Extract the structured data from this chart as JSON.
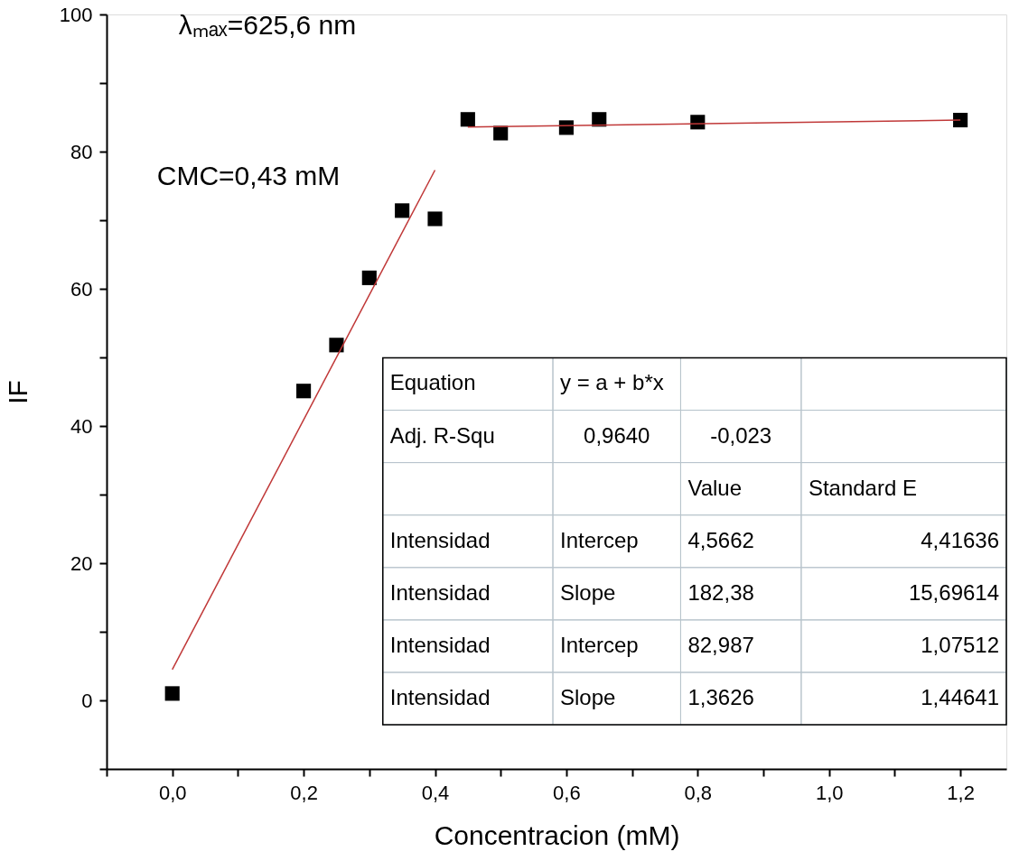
{
  "chart_data": {
    "type": "scatter",
    "xlabel": "Concentracion (mM)",
    "ylabel": "IF",
    "xlim": [
      -0.1,
      1.27
    ],
    "ylim": [
      -10,
      100
    ],
    "xticks": [
      {
        "value": -0.1,
        "label": null
      },
      {
        "value": 0,
        "label": "0,0"
      },
      {
        "value": 0.1,
        "label": null
      },
      {
        "value": 0.2,
        "label": "0,2"
      },
      {
        "value": 0.3,
        "label": null
      },
      {
        "value": 0.4,
        "label": "0,4"
      },
      {
        "value": 0.5,
        "label": null
      },
      {
        "value": 0.6,
        "label": "0,6"
      },
      {
        "value": 0.7,
        "label": null
      },
      {
        "value": 0.8,
        "label": "0,8"
      },
      {
        "value": 0.9,
        "label": null
      },
      {
        "value": 1.0,
        "label": "1,0"
      },
      {
        "value": 1.1,
        "label": null
      },
      {
        "value": 1.2,
        "label": "1,2"
      }
    ],
    "yticks": [
      {
        "value": -10,
        "label": null
      },
      0,
      {
        "value": 10,
        "label": null
      },
      20,
      {
        "value": 30,
        "label": null
      },
      40,
      {
        "value": 50,
        "label": null
      },
      60,
      {
        "value": 70,
        "label": null
      },
      80,
      {
        "value": 90,
        "label": null
      },
      100
    ],
    "grid": false,
    "series": [
      {
        "color": "#000000",
        "marker": "square",
        "x": [
          0.0,
          0.2,
          0.25,
          0.3,
          0.35,
          0.4,
          0.45,
          0.5,
          0.6,
          0.65,
          0.8,
          1.2
        ],
        "values": [
          1.0,
          45.1,
          51.8,
          61.6,
          71.4,
          70.2,
          84.7,
          82.7,
          83.5,
          84.7,
          84.3,
          84.6
        ]
      },
      {
        "type": "line",
        "color": "#c03838",
        "line_style": "solid",
        "x": [
          0.0,
          0.4
        ],
        "values": [
          4.5,
          77.3
        ]
      },
      {
        "type": "line",
        "color": "#c03838",
        "line_style": "solid",
        "x": [
          0.45,
          1.2
        ],
        "values": [
          83.6,
          84.6
        ]
      }
    ],
    "annotations": [
      "λₘₐₓ=625,6 nm",
      "CMC=0,43 mM",
      "Equation",
      "y = a + b*x",
      "Adj. R-Squ",
      "0,9640",
      "-0,023",
      "Value",
      "Standard E",
      "Intensidad",
      "Intercep",
      "4,5662",
      "4,41636",
      "Intensidad",
      "Slope",
      "182,38",
      "15,69614",
      "Intensidad",
      "Intercep",
      "82,987",
      "1,07512",
      "Intensidad",
      "Slope",
      "1,3626",
      "1,44641"
    ]
  }
}
